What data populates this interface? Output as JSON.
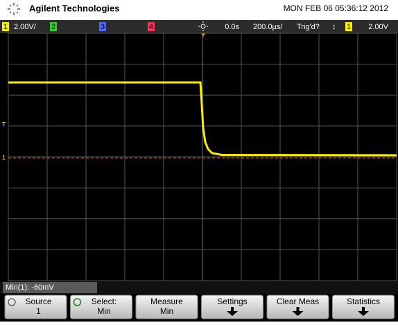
{
  "header": {
    "brand": "Agilent Technologies",
    "datetime": "MON FEB 06 05:36:12 2012"
  },
  "status_bar": {
    "ch1": "1",
    "ch1_scale": "2.00V/",
    "ch2": "2",
    "ch3": "3",
    "ch4": "4",
    "time_delay": "0.0s",
    "time_scale": "200.0µs/",
    "trigger_status": "Trig'd?",
    "trigger_slope": "↕",
    "trigger_source": "1",
    "trigger_level": "2.00V"
  },
  "markers": {
    "trigger": "T",
    "ground": "1"
  },
  "measurement": "Min(1): -60mV",
  "softkeys": [
    {
      "label": "Source",
      "value": "1"
    },
    {
      "label": "Select:",
      "value": "Min"
    },
    {
      "label": "Measure",
      "value": "Min"
    },
    {
      "label": "Settings"
    },
    {
      "label": "Clear Meas"
    },
    {
      "label": "Statistics"
    }
  ]
}
